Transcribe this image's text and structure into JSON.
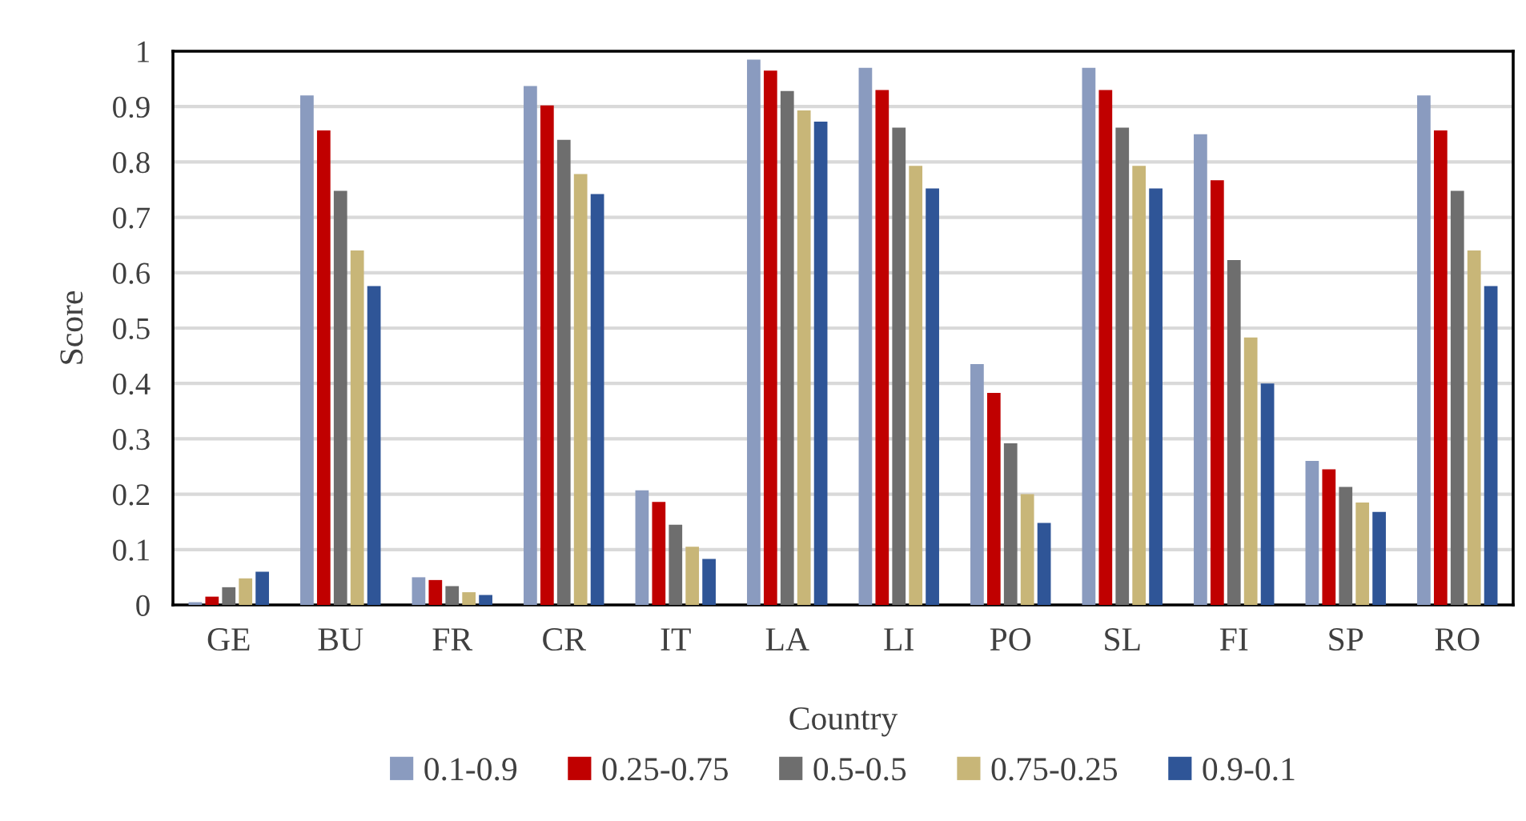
{
  "chart_data": {
    "type": "bar",
    "xlabel": "Country",
    "ylabel": "Score",
    "categories": [
      "GE",
      "BU",
      "FR",
      "CR",
      "IT",
      "LA",
      "LI",
      "PO",
      "SL",
      "FI",
      "SP",
      "RO"
    ],
    "series": [
      {
        "name": "0.1-0.9",
        "color": "#8a9bbf",
        "values": [
          0.005,
          0.92,
          0.05,
          0.937,
          0.207,
          0.985,
          0.97,
          0.435,
          0.97,
          0.85,
          0.26,
          0.92
        ]
      },
      {
        "name": "0.25-0.75",
        "color": "#c00000",
        "values": [
          0.015,
          0.857,
          0.045,
          0.902,
          0.186,
          0.965,
          0.93,
          0.383,
          0.93,
          0.767,
          0.245,
          0.857
        ]
      },
      {
        "name": "0.5-0.5",
        "color": "#6e6e6e",
        "values": [
          0.032,
          0.748,
          0.034,
          0.84,
          0.145,
          0.928,
          0.862,
          0.292,
          0.862,
          0.623,
          0.213,
          0.748
        ]
      },
      {
        "name": "0.75-0.25",
        "color": "#c8b678",
        "values": [
          0.048,
          0.64,
          0.023,
          0.778,
          0.105,
          0.893,
          0.793,
          0.2,
          0.793,
          0.483,
          0.185,
          0.64
        ]
      },
      {
        "name": "0.9-0.1",
        "color": "#2f5597",
        "values": [
          0.06,
          0.576,
          0.018,
          0.742,
          0.083,
          0.873,
          0.752,
          0.148,
          0.752,
          0.4,
          0.168,
          0.576
        ]
      }
    ],
    "ylim": [
      0,
      1
    ],
    "yticks": [
      0,
      0.1,
      0.2,
      0.3,
      0.4,
      0.5,
      0.6,
      0.7,
      0.8,
      0.9,
      1
    ],
    "grid": "y",
    "legend": "bottom"
  }
}
